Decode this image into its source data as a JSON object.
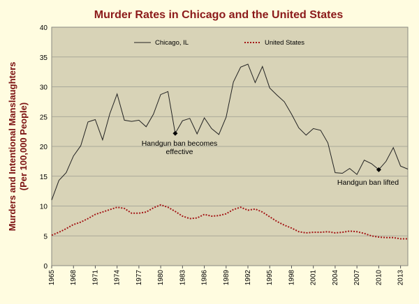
{
  "chart_data": {
    "type": "line",
    "title": "Murder Rates in Chicago and the United States",
    "ylabel_line1": "Murders and Intentional Manslaughters",
    "ylabel_line2": "(Per 100,000 People)",
    "xlabel": "",
    "xlim": [
      1965,
      2014
    ],
    "ylim": [
      0,
      40
    ],
    "yticks": [
      0,
      5,
      10,
      15,
      20,
      25,
      30,
      35,
      40
    ],
    "xticks": [
      1965,
      1968,
      1971,
      1974,
      1977,
      1980,
      1983,
      1986,
      1989,
      1992,
      1995,
      1998,
      2001,
      2004,
      2007,
      2010,
      2013
    ],
    "grid": true,
    "legend_position": "top",
    "colors": {
      "page_background": "#FFFCE0",
      "plot_background": "#D8D3B7",
      "title": "#8B1A1A",
      "ylabel": "#7B1010",
      "chicago": "#222222",
      "us": "#A31515",
      "gridline": "#9A9A90"
    },
    "series": [
      {
        "name": "Chicago, IL",
        "style": "solid",
        "x": [
          1965,
          1966,
          1967,
          1968,
          1969,
          1970,
          1971,
          1972,
          1973,
          1974,
          1975,
          1976,
          1977,
          1978,
          1979,
          1980,
          1981,
          1982,
          1983,
          1984,
          1985,
          1986,
          1987,
          1988,
          1989,
          1990,
          1991,
          1992,
          1993,
          1994,
          1995,
          1996,
          1997,
          1998,
          1999,
          2000,
          2001,
          2002,
          2003,
          2004,
          2005,
          2006,
          2007,
          2008,
          2009,
          2010,
          2011,
          2012,
          2013,
          2014
        ],
        "values": [
          11.0,
          14.3,
          15.6,
          18.4,
          20.1,
          24.1,
          24.5,
          21.1,
          25.5,
          28.8,
          24.4,
          24.2,
          24.4,
          23.3,
          25.4,
          28.7,
          29.2,
          22.2,
          24.3,
          24.7,
          22.1,
          24.8,
          23.0,
          22.0,
          24.9,
          30.8,
          33.3,
          33.8,
          30.7,
          33.4,
          29.8,
          28.6,
          27.5,
          25.4,
          23.1,
          21.9,
          23.0,
          22.7,
          20.6,
          15.6,
          15.5,
          16.3,
          15.3,
          17.7,
          17.1,
          16.1,
          17.5,
          19.8,
          16.7,
          16.2
        ]
      },
      {
        "name": "United States",
        "style": "dotted",
        "x": [
          1965,
          1966,
          1967,
          1968,
          1969,
          1970,
          1971,
          1972,
          1973,
          1974,
          1975,
          1976,
          1977,
          1978,
          1979,
          1980,
          1981,
          1982,
          1983,
          1984,
          1985,
          1986,
          1987,
          1988,
          1989,
          1990,
          1991,
          1992,
          1993,
          1994,
          1995,
          1996,
          1997,
          1998,
          1999,
          2000,
          2001,
          2002,
          2003,
          2004,
          2005,
          2006,
          2007,
          2008,
          2009,
          2010,
          2011,
          2012,
          2013,
          2014
        ],
        "values": [
          5.1,
          5.6,
          6.2,
          6.9,
          7.3,
          7.9,
          8.6,
          9.0,
          9.4,
          9.8,
          9.6,
          8.8,
          8.8,
          9.0,
          9.7,
          10.2,
          9.8,
          9.1,
          8.3,
          7.9,
          8.0,
          8.6,
          8.3,
          8.4,
          8.7,
          9.4,
          9.8,
          9.3,
          9.5,
          9.0,
          8.2,
          7.4,
          6.8,
          6.3,
          5.7,
          5.5,
          5.6,
          5.6,
          5.7,
          5.5,
          5.6,
          5.8,
          5.7,
          5.4,
          5.0,
          4.8,
          4.7,
          4.7,
          4.5,
          4.5
        ]
      }
    ],
    "annotations": [
      {
        "lines": [
          "Handgun ban becomes",
          "effective"
        ],
        "x": 1982,
        "y": 22.2
      },
      {
        "lines": [
          "Handgun ban lifted"
        ],
        "x": 2010,
        "y": 16.1
      }
    ]
  }
}
